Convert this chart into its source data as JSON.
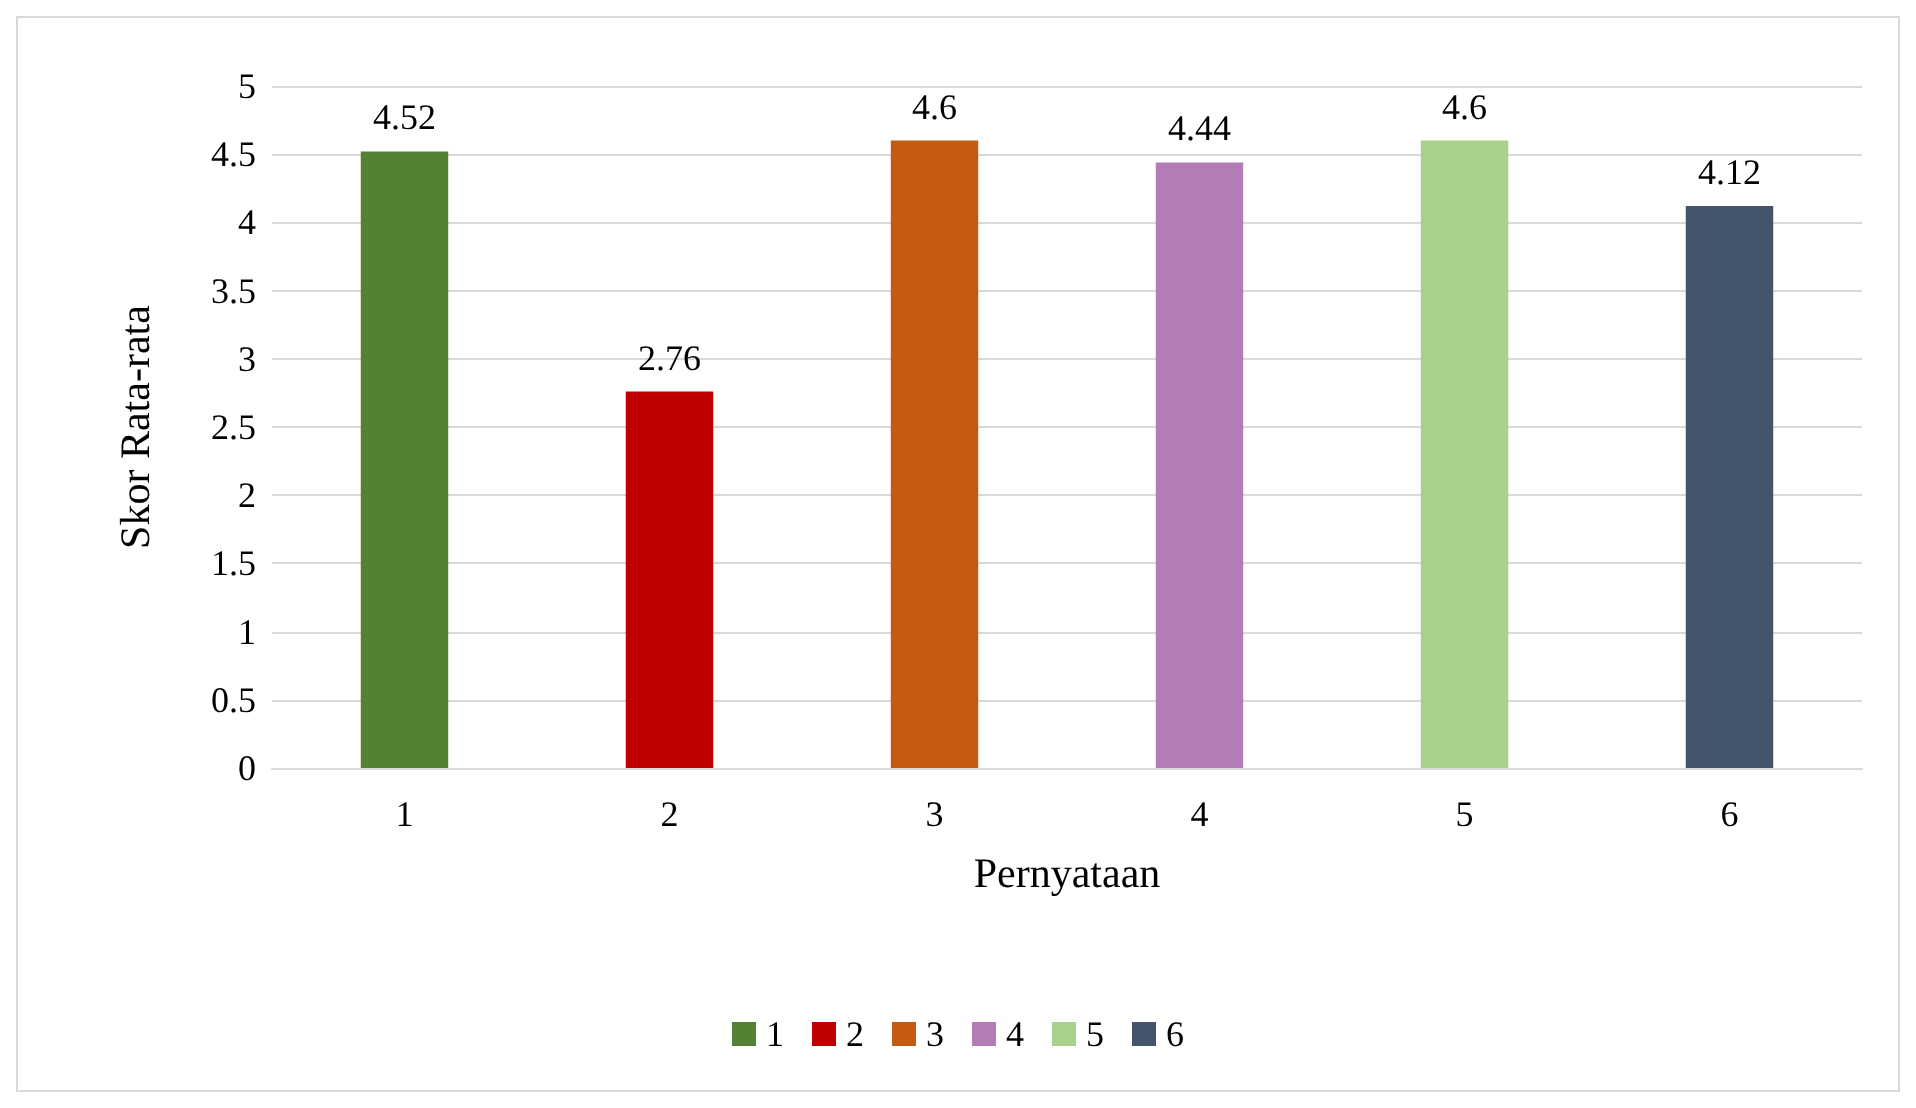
{
  "chart_data": {
    "type": "bar",
    "xlabel": "Pernyataan",
    "ylabel": "Skor Rata-rata",
    "categories": [
      "1",
      "2",
      "3",
      "4",
      "5",
      "6"
    ],
    "series": [
      {
        "name": "1",
        "color": "#548235",
        "values": [
          4.52,
          null,
          null,
          null,
          null,
          null
        ]
      },
      {
        "name": "2",
        "color": "#c00000",
        "values": [
          null,
          2.76,
          null,
          null,
          null,
          null
        ]
      },
      {
        "name": "3",
        "color": "#c55a11",
        "values": [
          null,
          null,
          4.6,
          null,
          null,
          null
        ]
      },
      {
        "name": "4",
        "color": "#b47cb6",
        "values": [
          null,
          null,
          null,
          4.44,
          null,
          null
        ]
      },
      {
        "name": "5",
        "color": "#a9d18e",
        "values": [
          null,
          null,
          null,
          null,
          4.6,
          null
        ]
      },
      {
        "name": "6",
        "color": "#44546a",
        "values": [
          null,
          null,
          null,
          null,
          null,
          4.12
        ]
      }
    ],
    "ylim": [
      0,
      5
    ],
    "yticks": [
      0,
      0.5,
      1,
      1.5,
      2,
      2.5,
      3,
      3.5,
      4,
      4.5,
      5
    ],
    "grid": "y",
    "legend": "bottom",
    "data_labels": true
  }
}
